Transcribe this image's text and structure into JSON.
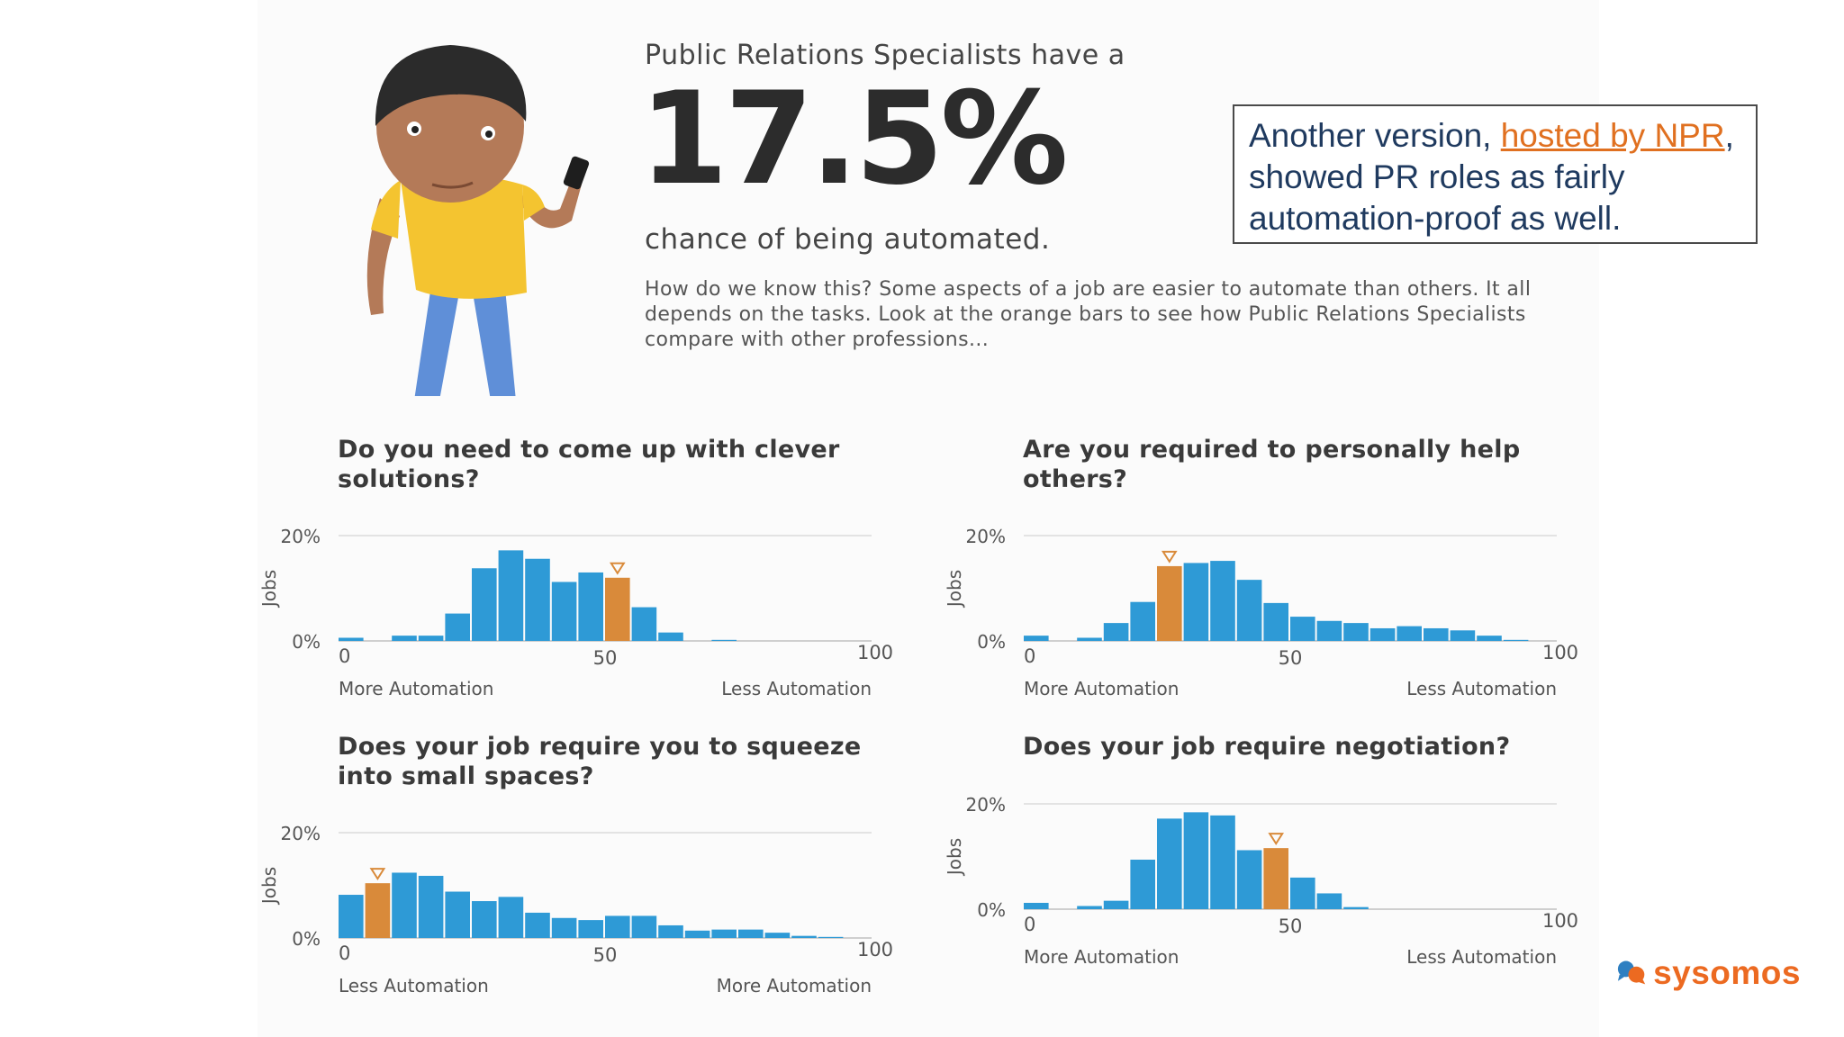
{
  "header": {
    "intro": "Public Relations Specialists have a",
    "percent": "17.5%",
    "after": "chance of being automated.",
    "description": "How do we know this? Some aspects of a job are easier to automate than others. It all depends on the tasks. Look at the orange bars to see how Public Relations Specialists compare with other professions..."
  },
  "note": {
    "before": "Another version, ",
    "link": "hosted by NPR",
    "after": ", showed PR roles as fairly automation-proof as well."
  },
  "brand": {
    "name": "sysomos"
  },
  "colors": {
    "bar": "#2e9ad6",
    "highlight": "#d98a3a",
    "grid": "#e3e3e3",
    "link": "#e07020",
    "brand": "#ec6a21"
  },
  "chart_data": [
    {
      "type": "bar",
      "title": "Do you need to come up with clever solutions?",
      "ylabel": "Jobs",
      "ylim": [
        0,
        20
      ],
      "y_ticks": [
        "20%",
        "0%"
      ],
      "xlim": [
        0,
        100
      ],
      "x_ticks": [
        "0",
        "50",
        "100"
      ],
      "x_left_label": "More Automation",
      "x_right_label": "Less Automation",
      "values": [
        0.6,
        0,
        1.0,
        1.0,
        5.2,
        13.8,
        17.2,
        15.6,
        11.2,
        13.0,
        12.0,
        6.4,
        1.6,
        0,
        0.2,
        0,
        0,
        0,
        0,
        0
      ],
      "highlight_index": 10
    },
    {
      "type": "bar",
      "title": "Are you required to personally help others?",
      "ylabel": "Jobs",
      "ylim": [
        0,
        20
      ],
      "y_ticks": [
        "20%",
        "0%"
      ],
      "xlim": [
        0,
        100
      ],
      "x_ticks": [
        "0",
        "50",
        "100"
      ],
      "x_left_label": "More Automation",
      "x_right_label": "Less Automation",
      "values": [
        1.0,
        0,
        0.6,
        3.4,
        7.4,
        14.2,
        14.8,
        15.2,
        11.6,
        7.2,
        4.6,
        3.8,
        3.4,
        2.4,
        2.8,
        2.4,
        2.0,
        1.0,
        0.2,
        0
      ],
      "highlight_index": 5
    },
    {
      "type": "bar",
      "title": "Does your job require you to squeeze into small spaces?",
      "ylabel": "Jobs",
      "ylim": [
        0,
        20
      ],
      "y_ticks": [
        "20%",
        "0%"
      ],
      "xlim": [
        0,
        100
      ],
      "x_ticks": [
        "0",
        "50",
        "100"
      ],
      "x_left_label": "Less Automation",
      "x_right_label": "More Automation",
      "values": [
        8.2,
        10.4,
        12.4,
        11.8,
        8.8,
        7.0,
        7.8,
        4.8,
        3.8,
        3.4,
        4.2,
        4.2,
        2.4,
        1.4,
        1.6,
        1.6,
        1.0,
        0.4,
        0.2,
        0
      ],
      "highlight_index": 1
    },
    {
      "type": "bar",
      "title": "Does your job require negotiation?",
      "ylabel": "Jobs",
      "ylim": [
        0,
        20
      ],
      "y_ticks": [
        "20%",
        "0%"
      ],
      "xlim": [
        0,
        100
      ],
      "x_ticks": [
        "0",
        "50",
        "100"
      ],
      "x_left_label": "More Automation",
      "x_right_label": "Less Automation",
      "values": [
        1.2,
        0,
        0.6,
        1.6,
        9.4,
        17.2,
        18.4,
        17.8,
        11.2,
        11.6,
        6.0,
        3.0,
        0.4,
        0,
        0,
        0,
        0,
        0,
        0,
        0
      ],
      "highlight_index": 9
    }
  ]
}
